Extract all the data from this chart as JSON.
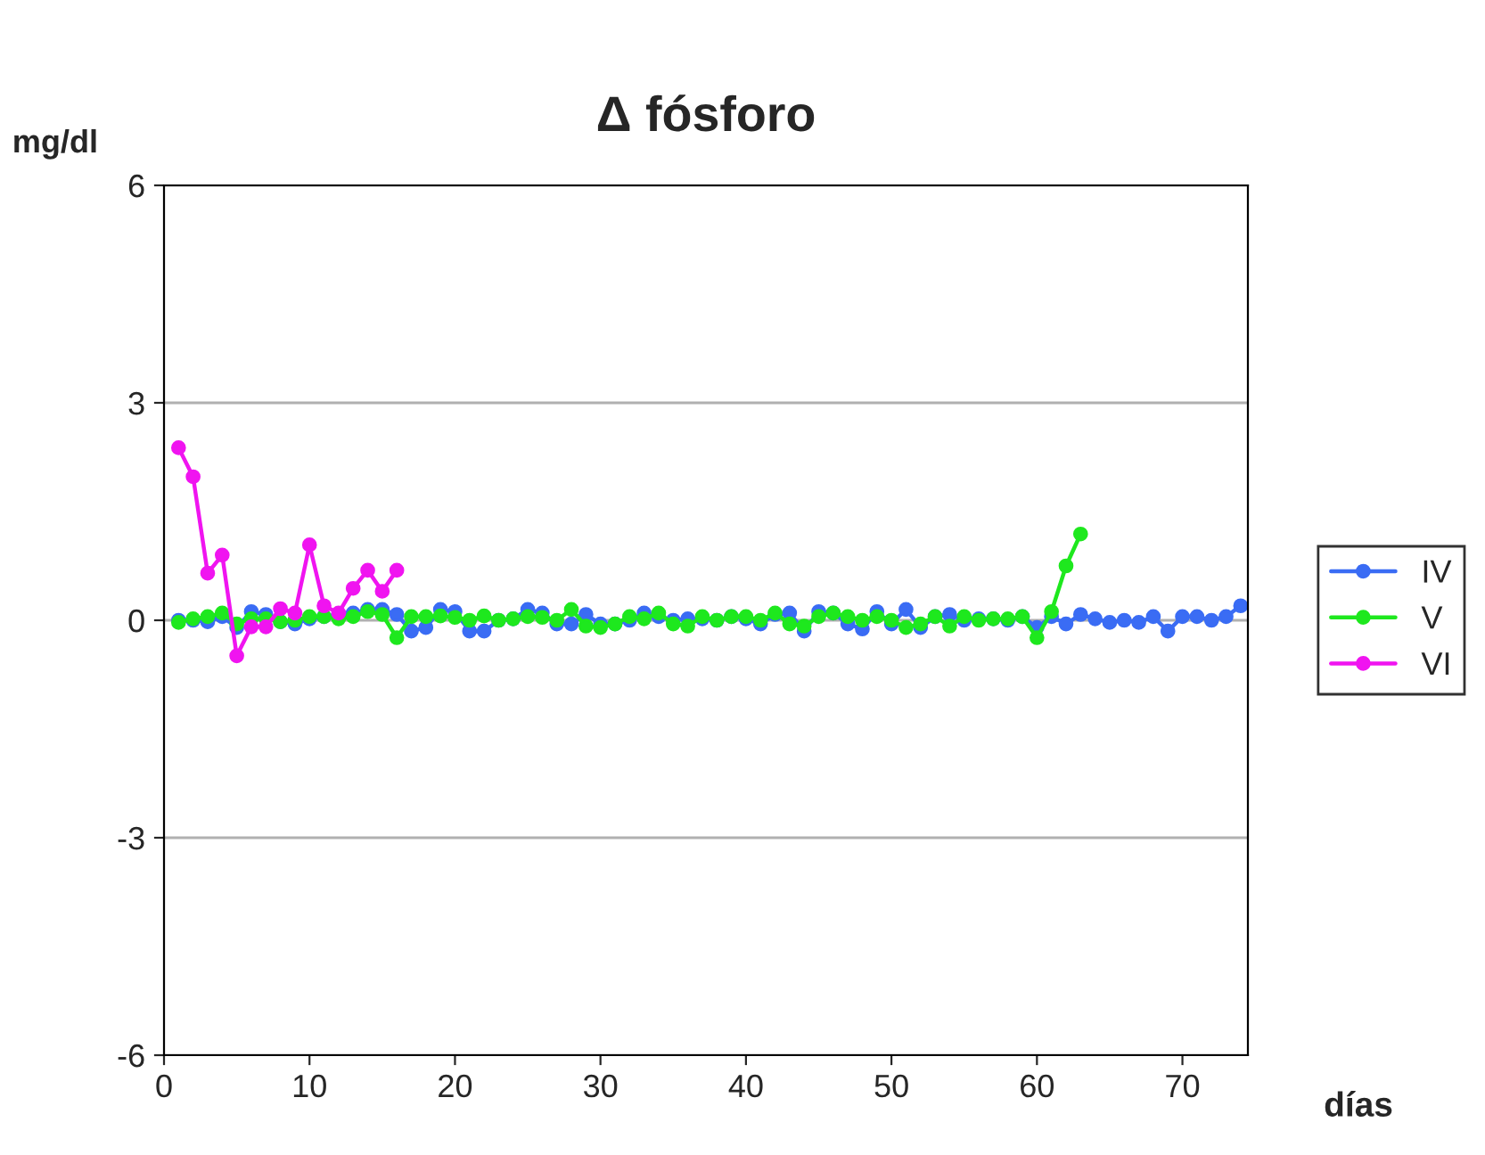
{
  "chart_data": {
    "type": "line",
    "title": "Δ fósforo",
    "xlabel": "días",
    "ylabel": "mg/dl",
    "xlim": [
      0,
      74.5
    ],
    "xticks": [
      0,
      10,
      20,
      30,
      40,
      50,
      60,
      70
    ],
    "ylim": [
      -6,
      6
    ],
    "yticks": [
      -6,
      -3,
      0,
      3,
      6
    ],
    "grid": "y",
    "legend": "right",
    "marker": "circle",
    "line_style": "solid",
    "series": [
      {
        "name": "IV",
        "color": "#3a6cf4",
        "x": [
          1,
          2,
          3,
          4,
          5,
          6,
          7,
          8,
          9,
          10,
          11,
          12,
          13,
          14,
          15,
          16,
          17,
          18,
          19,
          20,
          21,
          22,
          23,
          24,
          25,
          26,
          27,
          28,
          29,
          30,
          31,
          32,
          33,
          34,
          35,
          36,
          37,
          38,
          39,
          40,
          41,
          42,
          43,
          44,
          45,
          46,
          47,
          48,
          49,
          50,
          51,
          52,
          53,
          54,
          55,
          56,
          57,
          58,
          59,
          60,
          61,
          62,
          63,
          64,
          65,
          66,
          67,
          68,
          69,
          70,
          71,
          72,
          73,
          74
        ],
        "values": [
          0.0,
          0.0,
          -0.02,
          0.05,
          -0.1,
          0.12,
          0.08,
          -0.02,
          -0.05,
          0.02,
          0.05,
          0.08,
          0.1,
          0.15,
          0.15,
          0.08,
          -0.15,
          -0.1,
          0.15,
          0.12,
          -0.15,
          -0.15,
          0.0,
          0.02,
          0.15,
          0.1,
          -0.05,
          -0.05,
          0.08,
          -0.05,
          -0.05,
          0.0,
          0.1,
          0.05,
          0.0,
          0.02,
          0.02,
          0.0,
          0.05,
          0.02,
          -0.05,
          0.08,
          0.1,
          -0.15,
          0.12,
          0.1,
          -0.05,
          -0.12,
          0.12,
          -0.05,
          0.15,
          -0.1,
          0.05,
          0.08,
          0.0,
          0.02,
          0.02,
          0.0,
          0.05,
          -0.1,
          0.05,
          -0.05,
          0.08,
          0.02,
          -0.03,
          0.0,
          -0.03,
          0.05,
          -0.15,
          0.05,
          0.05,
          0.0,
          0.05,
          0.2
        ]
      },
      {
        "name": "V",
        "color": "#1ee81e",
        "x": [
          1,
          2,
          3,
          4,
          5,
          6,
          7,
          8,
          9,
          10,
          11,
          12,
          13,
          14,
          15,
          16,
          17,
          18,
          19,
          20,
          21,
          22,
          23,
          24,
          25,
          26,
          27,
          28,
          29,
          30,
          31,
          32,
          33,
          34,
          35,
          36,
          37,
          38,
          39,
          40,
          41,
          42,
          43,
          44,
          45,
          46,
          47,
          48,
          49,
          50,
          51,
          52,
          53,
          54,
          55,
          56,
          57,
          58,
          59,
          60,
          61,
          62,
          63
        ],
        "values": [
          -0.03,
          0.02,
          0.05,
          0.1,
          -0.05,
          0.02,
          0.02,
          -0.02,
          0.0,
          0.05,
          0.05,
          0.02,
          0.05,
          0.12,
          0.08,
          -0.24,
          0.05,
          0.05,
          0.06,
          0.04,
          0.0,
          0.06,
          0.0,
          0.02,
          0.05,
          0.04,
          0.0,
          0.15,
          -0.08,
          -0.1,
          -0.05,
          0.05,
          0.02,
          0.1,
          -0.05,
          -0.08,
          0.05,
          0.0,
          0.05,
          0.05,
          0.0,
          0.1,
          -0.05,
          -0.08,
          0.05,
          0.1,
          0.05,
          0.0,
          0.05,
          0.0,
          -0.1,
          -0.05,
          0.05,
          -0.08,
          0.05,
          0.0,
          0.02,
          0.02,
          0.05,
          -0.24,
          0.12,
          0.75,
          1.19
        ]
      },
      {
        "name": "VI",
        "color": "#f014f0",
        "x": [
          1,
          2,
          3,
          4,
          5,
          6,
          7,
          8,
          9,
          10,
          11,
          12,
          13,
          14,
          15,
          16
        ],
        "values": [
          2.38,
          1.98,
          0.65,
          0.9,
          -0.49,
          -0.09,
          -0.09,
          0.16,
          0.1,
          1.04,
          0.2,
          0.1,
          0.44,
          0.69,
          0.4,
          0.69
        ]
      }
    ]
  }
}
